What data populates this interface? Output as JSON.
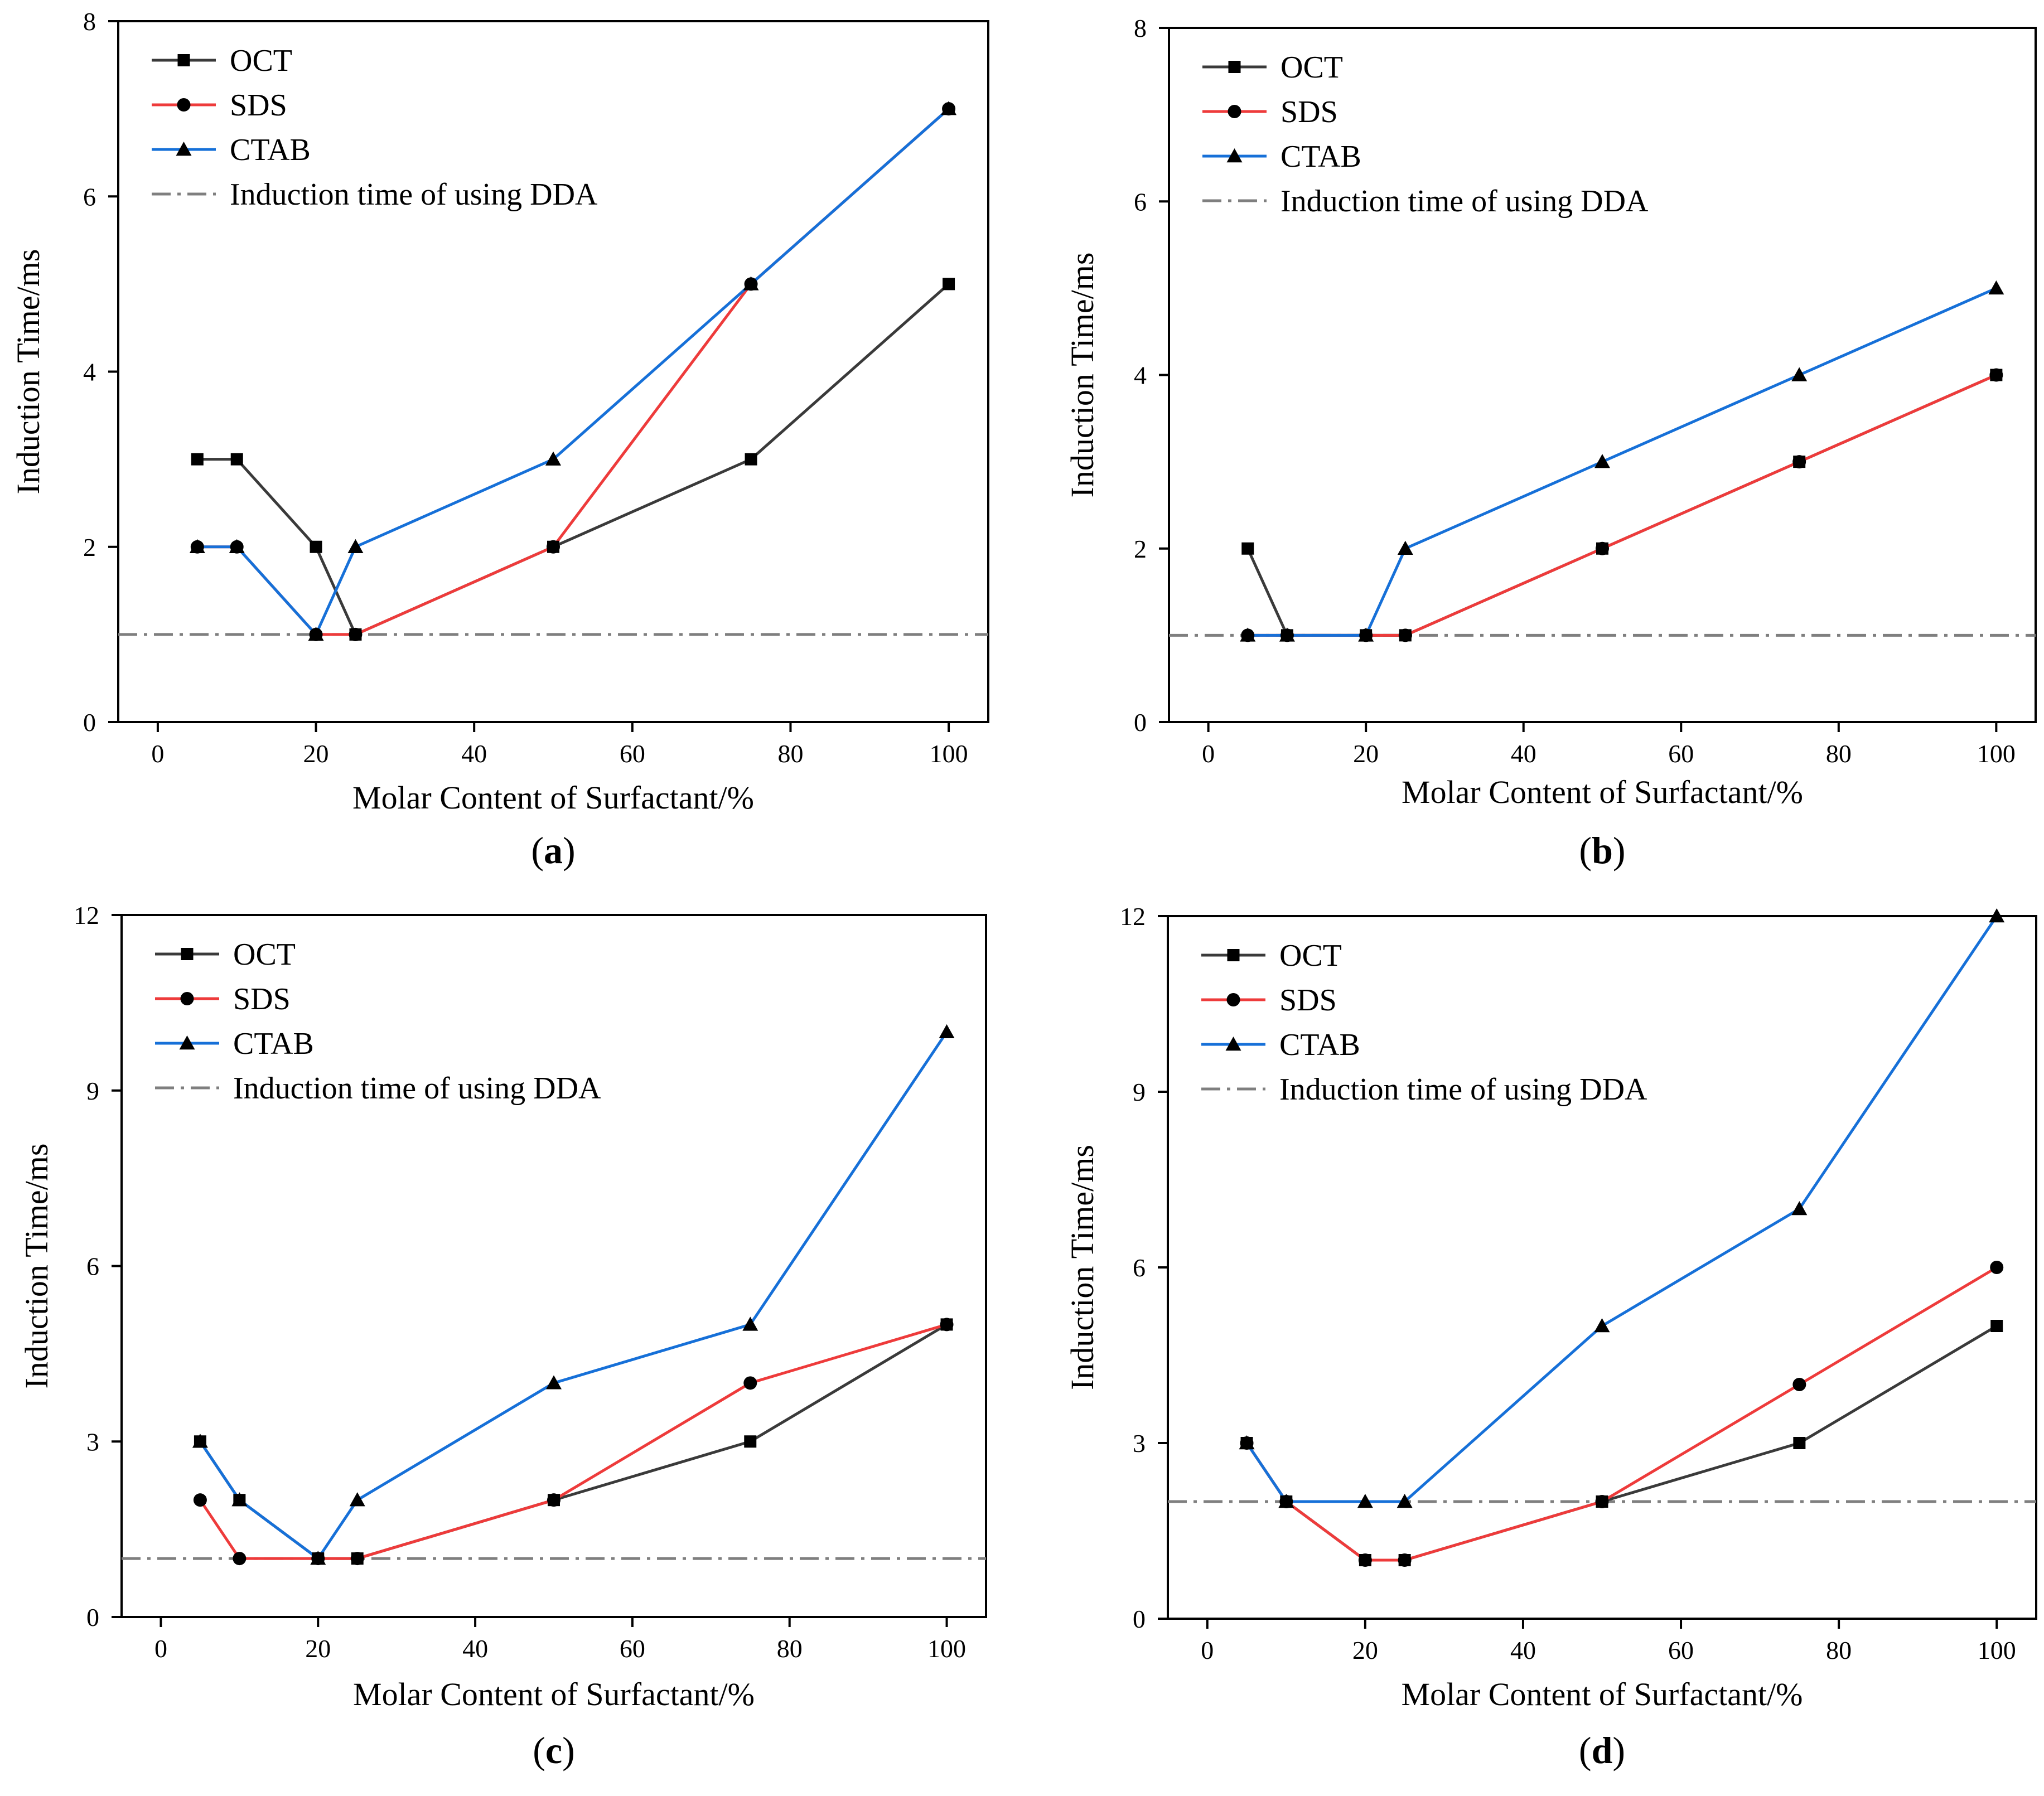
{
  "figure": {
    "colors": {
      "OCT": "#3a3a3a",
      "SDS": "#ee3b3b",
      "CTAB": "#1670d8",
      "DDA": "#7f7f7f",
      "marker": "#000000"
    },
    "markers": {
      "OCT": "square",
      "SDS": "circle",
      "CTAB": "triangle"
    }
  },
  "chart_data": [
    {
      "type": "line",
      "panel_label": "a",
      "xlabel": "Molar Content of Surfactant/%",
      "ylabel": "Induction Time/ms",
      "xlim": [
        -5,
        105
      ],
      "ylim": [
        0,
        8
      ],
      "xticks": [
        0,
        20,
        40,
        60,
        80,
        100
      ],
      "yticks": [
        0,
        2,
        4,
        6,
        8
      ],
      "legend_position": "top-left",
      "x": [
        5,
        10,
        20,
        25,
        50,
        75,
        100
      ],
      "series": [
        {
          "name": "OCT",
          "values": [
            3,
            3,
            2,
            1,
            2,
            3,
            5
          ]
        },
        {
          "name": "SDS",
          "values": [
            2,
            2,
            1,
            1,
            2,
            5,
            7
          ]
        },
        {
          "name": "CTAB",
          "values": [
            2,
            2,
            1,
            2,
            3,
            5,
            7
          ]
        }
      ],
      "reference_line": {
        "name": "Induction time of using DDA",
        "value": 1
      }
    },
    {
      "type": "line",
      "panel_label": "b",
      "xlabel": "Molar Content of Surfactant/%",
      "ylabel": "Induction Time/ms",
      "xlim": [
        -5,
        105
      ],
      "ylim": [
        0,
        8
      ],
      "xticks": [
        0,
        20,
        40,
        60,
        80,
        100
      ],
      "yticks": [
        0,
        2,
        4,
        6,
        8
      ],
      "legend_position": "top-left",
      "x": [
        5,
        10,
        20,
        25,
        50,
        75,
        100
      ],
      "series": [
        {
          "name": "OCT",
          "values": [
            2,
            1,
            1,
            1,
            2,
            3,
            4
          ]
        },
        {
          "name": "SDS",
          "values": [
            1,
            1,
            1,
            1,
            2,
            3,
            4
          ]
        },
        {
          "name": "CTAB",
          "values": [
            1,
            1,
            1,
            2,
            3,
            4,
            5
          ]
        }
      ],
      "reference_line": {
        "name": "Induction time of using DDA",
        "value": 1
      }
    },
    {
      "type": "line",
      "panel_label": "c",
      "xlabel": "Molar Content of Surfactant/%",
      "ylabel": "Induction Time/ms",
      "xlim": [
        -5,
        105
      ],
      "ylim": [
        0,
        12
      ],
      "xticks": [
        0,
        20,
        40,
        60,
        80,
        100
      ],
      "yticks": [
        0,
        3,
        6,
        9,
        12
      ],
      "legend_position": "top-left",
      "x": [
        5,
        10,
        20,
        25,
        50,
        75,
        100
      ],
      "series": [
        {
          "name": "OCT",
          "values": [
            3,
            2,
            1,
            1,
            2,
            3,
            5
          ]
        },
        {
          "name": "SDS",
          "values": [
            2,
            1,
            1,
            1,
            2,
            4,
            5
          ]
        },
        {
          "name": "CTAB",
          "values": [
            3,
            2,
            1,
            2,
            4,
            5,
            10
          ]
        }
      ],
      "reference_line": {
        "name": "Induction time of using DDA",
        "value": 1
      }
    },
    {
      "type": "line",
      "panel_label": "d",
      "xlabel": "Molar Content of Surfactant/%",
      "ylabel": "Induction Time/ms",
      "xlim": [
        -5,
        105
      ],
      "ylim": [
        0,
        12
      ],
      "xticks": [
        0,
        20,
        40,
        60,
        80,
        100
      ],
      "yticks": [
        0,
        3,
        6,
        9,
        12
      ],
      "legend_position": "top-left",
      "x": [
        5,
        10,
        20,
        25,
        50,
        75,
        100
      ],
      "series": [
        {
          "name": "OCT",
          "values": [
            3,
            2,
            1,
            1,
            2,
            3,
            5
          ]
        },
        {
          "name": "SDS",
          "values": [
            3,
            2,
            1,
            1,
            2,
            4,
            6
          ]
        },
        {
          "name": "CTAB",
          "values": [
            3,
            2,
            2,
            2,
            5,
            7,
            12
          ]
        }
      ],
      "reference_line": {
        "name": "Induction time of using DDA",
        "value": 2
      }
    }
  ]
}
